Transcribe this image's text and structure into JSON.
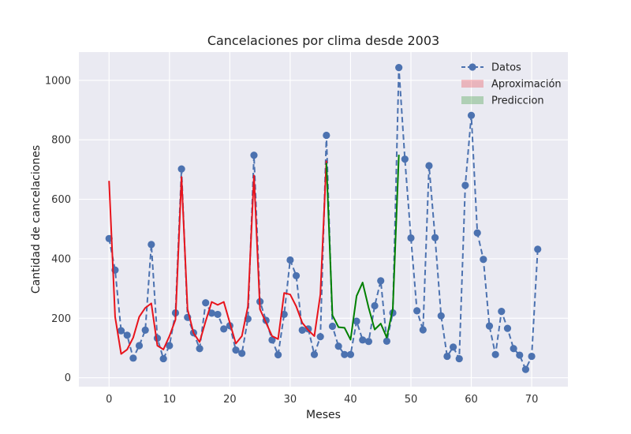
{
  "chart_data": {
    "type": "line",
    "title": "Cancelaciones por clima desde 2003",
    "xlabel": "Meses",
    "ylabel": "Cantidad de cancelaciones",
    "xlim": [
      -5,
      76
    ],
    "ylim": [
      -30,
      1095
    ],
    "xticks": [
      0,
      10,
      20,
      30,
      40,
      50,
      60,
      70
    ],
    "yticks": [
      0,
      200,
      400,
      600,
      800,
      1000
    ],
    "grid": true,
    "legend_position": "top-right",
    "series": [
      {
        "name": "Datos",
        "style": "dashed-with-markers",
        "color": "#4c72b0",
        "x": [
          0,
          1,
          2,
          3,
          4,
          5,
          6,
          7,
          8,
          9,
          10,
          11,
          12,
          13,
          14,
          15,
          16,
          17,
          18,
          19,
          20,
          21,
          22,
          23,
          24,
          25,
          26,
          27,
          28,
          29,
          30,
          31,
          32,
          33,
          34,
          35,
          36,
          37,
          38,
          39,
          40,
          41,
          42,
          43,
          44,
          45,
          46,
          47,
          48,
          49,
          50,
          51,
          52,
          53,
          54,
          55,
          56,
          57,
          58,
          59,
          60,
          61,
          62,
          63,
          64,
          65,
          66,
          67,
          68,
          69,
          70,
          71
        ],
        "values": [
          468,
          362,
          158,
          143,
          66,
          108,
          160,
          448,
          133,
          64,
          108,
          218,
          702,
          203,
          151,
          98,
          252,
          217,
          213,
          164,
          175,
          93,
          82,
          198,
          748,
          256,
          193,
          127,
          77,
          213,
          396,
          343,
          160,
          164,
          78,
          138,
          815,
          173,
          106,
          78,
          78,
          190,
          127,
          122,
          242,
          326,
          123,
          218,
          1043,
          735,
          470,
          225,
          161,
          713,
          471,
          208,
          72,
          103,
          64,
          647,
          882,
          487,
          398,
          174,
          78,
          223,
          166,
          98,
          76,
          28,
          72,
          432
        ]
      },
      {
        "name": "Aproximación",
        "style": "solid",
        "color": "#e8141c",
        "x": [
          0,
          1,
          2,
          3,
          4,
          5,
          6,
          7,
          8,
          9,
          10,
          11,
          12,
          13,
          14,
          15,
          16,
          17,
          18,
          19,
          20,
          21,
          22,
          23,
          24,
          25,
          26,
          27,
          28,
          29,
          30,
          31,
          32,
          33,
          34,
          35,
          36
        ],
        "values": [
          662,
          205,
          80,
          95,
          135,
          205,
          235,
          250,
          108,
          95,
          140,
          195,
          675,
          230,
          150,
          120,
          190,
          255,
          245,
          255,
          185,
          115,
          140,
          240,
          680,
          230,
          185,
          140,
          130,
          285,
          280,
          240,
          185,
          160,
          140,
          280,
          730
        ]
      },
      {
        "name": "Prediccion",
        "style": "solid",
        "color": "#008000",
        "x": [
          36,
          37,
          38,
          39,
          40,
          41,
          42,
          43,
          44,
          45,
          46,
          47,
          48
        ],
        "values": [
          722,
          210,
          170,
          168,
          128,
          275,
          320,
          235,
          162,
          182,
          135,
          232,
          750
        ]
      }
    ]
  }
}
